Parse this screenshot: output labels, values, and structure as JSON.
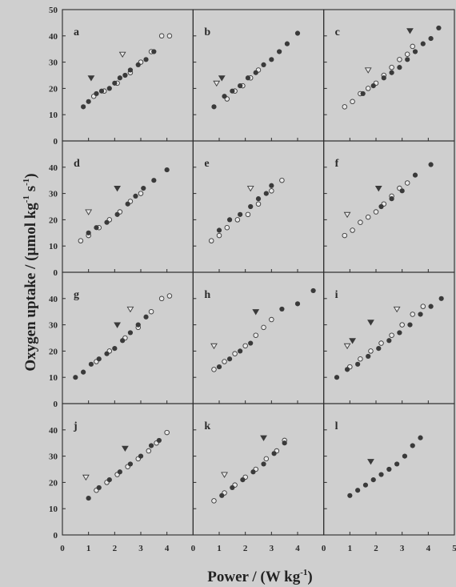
{
  "chart_data": {
    "type": "scatter",
    "xlabel": "Power / (W kg",
    "xlabel_sup": "-1",
    "xlabel_close": ")",
    "ylabel": "Oxygen uptake / (µmol kg",
    "ylabel_sup1": "-1",
    "ylabel_mid": " s",
    "ylabel_sup2": "-1",
    "ylabel_close": ")",
    "xlim": [
      0,
      5
    ],
    "ylim": [
      0,
      50
    ],
    "layout": "4 rows x 3 columns, shared axes",
    "x_tick_labels": [
      "0",
      "1",
      "2",
      "3",
      "4",
      "0",
      "1",
      "2",
      "3",
      "4",
      "0",
      "1",
      "2",
      "3",
      "4",
      "5"
    ],
    "y_tick_labels_top": [
      "50",
      "40",
      "30",
      "20",
      "10",
      "0"
    ],
    "y_tick_labels": [
      "40",
      "30",
      "20",
      "10",
      "0"
    ],
    "y_tick_labels_bottom": [
      "40",
      "30",
      "20",
      "10",
      "0"
    ],
    "colors": {
      "background": "#cfcfcf",
      "marks": "#3a3a3a",
      "open_fill": "#e8e8e8",
      "axes": "#2b2b2b"
    },
    "panels": [
      {
        "label": "a",
        "filled": [
          [
            0.8,
            13
          ],
          [
            1.0,
            15
          ],
          [
            1.3,
            18
          ],
          [
            1.5,
            19
          ],
          [
            1.8,
            20
          ],
          [
            2.0,
            22
          ],
          [
            2.2,
            24
          ],
          [
            2.4,
            25
          ],
          [
            2.6,
            27
          ],
          [
            2.9,
            29
          ],
          [
            3.2,
            31
          ],
          [
            3.5,
            34
          ]
        ],
        "open": [
          [
            1.2,
            17
          ],
          [
            1.6,
            19
          ],
          [
            2.1,
            22
          ],
          [
            2.6,
            26
          ],
          [
            3.0,
            30
          ],
          [
            3.4,
            34
          ],
          [
            3.8,
            40
          ],
          [
            4.1,
            40
          ]
        ],
        "tri_filled": [
          [
            1.1,
            24
          ]
        ],
        "tri_open": [
          [
            2.3,
            33
          ]
        ]
      },
      {
        "label": "b",
        "filled": [
          [
            0.8,
            13
          ],
          [
            1.2,
            17
          ],
          [
            1.5,
            19
          ],
          [
            1.8,
            21
          ],
          [
            2.1,
            24
          ],
          [
            2.4,
            26
          ],
          [
            2.7,
            29
          ],
          [
            3.0,
            31
          ],
          [
            3.3,
            34
          ],
          [
            3.6,
            37
          ],
          [
            4.0,
            41
          ]
        ],
        "open": [
          [
            1.3,
            16
          ],
          [
            1.6,
            19
          ],
          [
            1.9,
            21
          ],
          [
            2.2,
            24
          ],
          [
            2.5,
            27
          ]
        ],
        "tri_filled": [
          [
            1.1,
            24
          ]
        ],
        "tri_open": [
          [
            0.9,
            22
          ]
        ]
      },
      {
        "label": "c",
        "filled": [
          [
            1.5,
            18
          ],
          [
            1.9,
            21
          ],
          [
            2.3,
            24
          ],
          [
            2.6,
            26
          ],
          [
            2.9,
            28
          ],
          [
            3.2,
            31
          ],
          [
            3.5,
            34
          ],
          [
            3.8,
            37
          ],
          [
            4.1,
            39
          ],
          [
            4.4,
            43
          ]
        ],
        "open": [
          [
            0.8,
            13
          ],
          [
            1.1,
            15
          ],
          [
            1.4,
            18
          ],
          [
            1.7,
            20
          ],
          [
            2.0,
            22
          ],
          [
            2.3,
            25
          ],
          [
            2.6,
            28
          ],
          [
            2.9,
            31
          ],
          [
            3.2,
            33
          ],
          [
            3.4,
            36
          ]
        ],
        "tri_filled": [
          [
            3.3,
            42
          ]
        ],
        "tri_open": [
          [
            1.7,
            27
          ]
        ]
      },
      {
        "label": "d",
        "filled": [
          [
            1.0,
            15
          ],
          [
            1.3,
            17
          ],
          [
            1.7,
            19
          ],
          [
            2.1,
            22
          ],
          [
            2.5,
            26
          ],
          [
            2.8,
            29
          ],
          [
            3.1,
            32
          ],
          [
            3.5,
            35
          ],
          [
            4.0,
            39
          ]
        ],
        "open": [
          [
            0.7,
            12
          ],
          [
            1.0,
            14
          ],
          [
            1.4,
            17
          ],
          [
            1.8,
            20
          ],
          [
            2.2,
            23
          ],
          [
            2.6,
            27
          ],
          [
            3.0,
            30
          ]
        ],
        "tri_filled": [
          [
            2.1,
            32
          ]
        ],
        "tri_open": [
          [
            1.0,
            23
          ]
        ]
      },
      {
        "label": "e",
        "filled": [
          [
            1.0,
            16
          ],
          [
            1.4,
            20
          ],
          [
            1.8,
            22
          ],
          [
            2.2,
            25
          ],
          [
            2.5,
            28
          ],
          [
            2.8,
            30
          ],
          [
            3.0,
            33
          ]
        ],
        "open": [
          [
            0.7,
            12
          ],
          [
            1.0,
            14
          ],
          [
            1.3,
            17
          ],
          [
            1.7,
            20
          ],
          [
            2.1,
            22
          ],
          [
            2.5,
            26
          ],
          [
            3.0,
            31
          ],
          [
            3.4,
            35
          ]
        ],
        "tri_filled": [],
        "tri_open": [
          [
            2.2,
            32
          ]
        ]
      },
      {
        "label": "f",
        "filled": [
          [
            2.2,
            25
          ],
          [
            2.6,
            28
          ],
          [
            3.0,
            31
          ],
          [
            3.5,
            37
          ],
          [
            4.1,
            41
          ]
        ],
        "open": [
          [
            0.8,
            14
          ],
          [
            1.1,
            16
          ],
          [
            1.4,
            19
          ],
          [
            1.7,
            21
          ],
          [
            2.0,
            23
          ],
          [
            2.3,
            26
          ],
          [
            2.6,
            29
          ],
          [
            2.9,
            32
          ],
          [
            3.2,
            34
          ]
        ],
        "tri_filled": [
          [
            2.1,
            32
          ]
        ],
        "tri_open": [
          [
            0.9,
            22
          ]
        ]
      },
      {
        "label": "g",
        "filled": [
          [
            0.5,
            10
          ],
          [
            0.8,
            12
          ],
          [
            1.1,
            15
          ],
          [
            1.4,
            17
          ],
          [
            1.7,
            19
          ],
          [
            2.0,
            21
          ],
          [
            2.3,
            24
          ],
          [
            2.6,
            27
          ],
          [
            2.9,
            30
          ],
          [
            3.2,
            33
          ]
        ],
        "open": [
          [
            1.3,
            16
          ],
          [
            1.8,
            20
          ],
          [
            2.4,
            25
          ],
          [
            2.9,
            29
          ],
          [
            3.4,
            35
          ],
          [
            3.8,
            40
          ],
          [
            4.1,
            41
          ]
        ],
        "tri_filled": [
          [
            2.1,
            30
          ]
        ],
        "tri_open": [
          [
            2.6,
            36
          ]
        ]
      },
      {
        "label": "h",
        "filled": [
          [
            1.0,
            14
          ],
          [
            1.4,
            17
          ],
          [
            1.8,
            20
          ],
          [
            2.2,
            23
          ],
          [
            3.4,
            36
          ],
          [
            4.0,
            38
          ],
          [
            4.6,
            43
          ]
        ],
        "open": [
          [
            0.8,
            13
          ],
          [
            1.2,
            16
          ],
          [
            1.6,
            19
          ],
          [
            2.0,
            22
          ],
          [
            2.4,
            26
          ],
          [
            2.7,
            29
          ],
          [
            3.0,
            32
          ]
        ],
        "tri_filled": [
          [
            2.4,
            35
          ]
        ],
        "tri_open": [
          [
            0.8,
            22
          ]
        ]
      },
      {
        "label": "i",
        "filled": [
          [
            0.5,
            10
          ],
          [
            0.9,
            13
          ],
          [
            1.3,
            15
          ],
          [
            1.7,
            18
          ],
          [
            2.1,
            21
          ],
          [
            2.5,
            24
          ],
          [
            2.9,
            27
          ],
          [
            3.3,
            30
          ],
          [
            3.7,
            34
          ],
          [
            4.1,
            37
          ],
          [
            4.5,
            40
          ]
        ],
        "open": [
          [
            1.0,
            14
          ],
          [
            1.4,
            17
          ],
          [
            1.8,
            20
          ],
          [
            2.2,
            23
          ],
          [
            2.6,
            26
          ],
          [
            3.0,
            30
          ],
          [
            3.4,
            34
          ],
          [
            3.8,
            37
          ]
        ],
        "tri_filled": [
          [
            1.1,
            24
          ],
          [
            1.8,
            31
          ]
        ],
        "tri_open": [
          [
            0.9,
            22
          ],
          [
            2.8,
            36
          ]
        ]
      },
      {
        "label": "j",
        "filled": [
          [
            1.0,
            14
          ],
          [
            1.4,
            18
          ],
          [
            1.8,
            21
          ],
          [
            2.2,
            24
          ],
          [
            2.6,
            27
          ],
          [
            3.0,
            30
          ],
          [
            3.4,
            34
          ],
          [
            3.7,
            36
          ]
        ],
        "open": [
          [
            1.3,
            17
          ],
          [
            1.7,
            20
          ],
          [
            2.1,
            23
          ],
          [
            2.5,
            26
          ],
          [
            2.9,
            29
          ],
          [
            3.3,
            32
          ],
          [
            3.6,
            35
          ],
          [
            4.0,
            39
          ]
        ],
        "tri_filled": [
          [
            2.4,
            33
          ]
        ],
        "tri_open": [
          [
            0.9,
            22
          ]
        ]
      },
      {
        "label": "k",
        "filled": [
          [
            1.1,
            15
          ],
          [
            1.5,
            18
          ],
          [
            1.9,
            21
          ],
          [
            2.3,
            24
          ],
          [
            2.7,
            27
          ],
          [
            3.1,
            31
          ],
          [
            3.5,
            35
          ]
        ],
        "open": [
          [
            0.8,
            13
          ],
          [
            1.2,
            16
          ],
          [
            1.6,
            19
          ],
          [
            2.0,
            22
          ],
          [
            2.4,
            25
          ],
          [
            2.8,
            29
          ],
          [
            3.2,
            32
          ],
          [
            3.5,
            36
          ]
        ],
        "tri_filled": [
          [
            2.7,
            37
          ]
        ],
        "tri_open": [
          [
            1.2,
            23
          ]
        ]
      },
      {
        "label": "l",
        "filled": [
          [
            1.0,
            15
          ],
          [
            1.3,
            17
          ],
          [
            1.6,
            19
          ],
          [
            1.9,
            21
          ],
          [
            2.2,
            23
          ],
          [
            2.5,
            25
          ],
          [
            2.8,
            27
          ],
          [
            3.1,
            30
          ],
          [
            3.4,
            34
          ],
          [
            3.7,
            37
          ]
        ],
        "open": [],
        "tri_filled": [
          [
            1.8,
            28
          ]
        ],
        "tri_open": []
      }
    ]
  }
}
